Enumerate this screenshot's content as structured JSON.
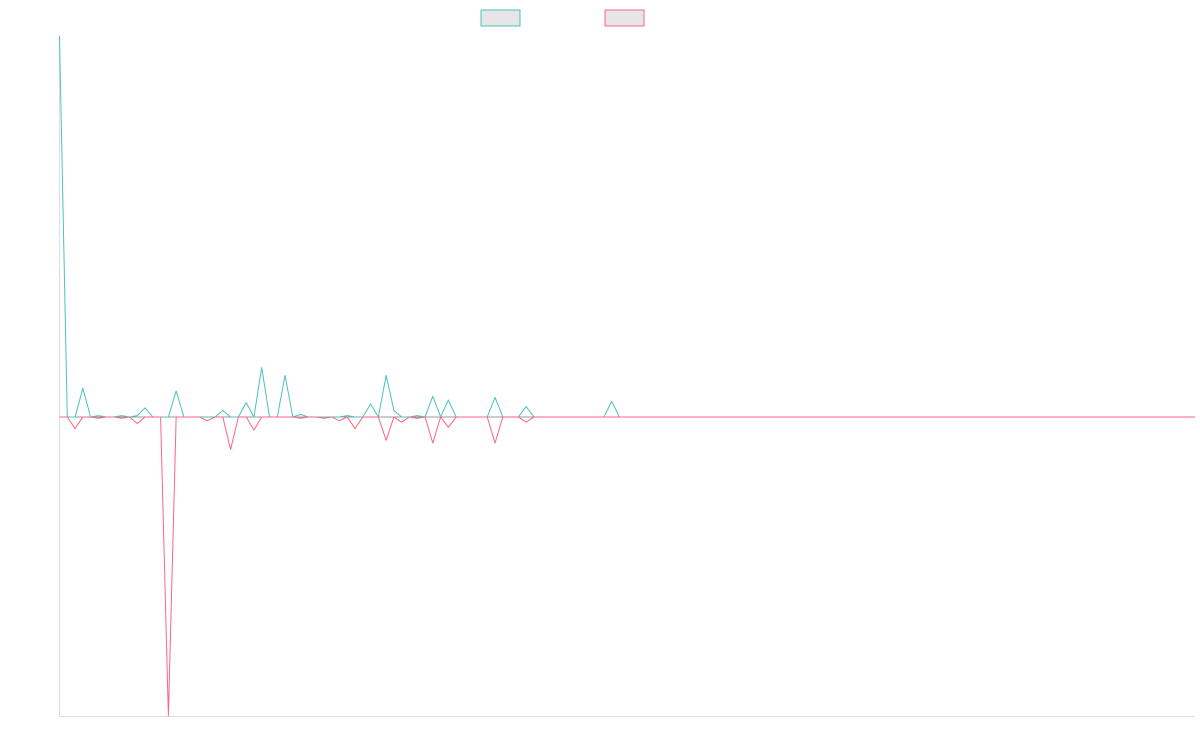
{
  "colors": {
    "background": "#ffffff",
    "series_a": "#4bc0c0",
    "series_b": "#ff6384",
    "legend_fill": "#e6e6e6",
    "axis": "#dddddd",
    "zero_line": "#999999"
  },
  "chart_data": {
    "type": "line",
    "title": "",
    "xlabel": "",
    "ylabel": "",
    "grid": false,
    "legend_position": "top-center",
    "xlim": [
      0,
      150
    ],
    "ylim": [
      -230,
      293
    ],
    "series": [
      {
        "name": "",
        "color": "#4bc0c0",
        "values": [
          293,
          0,
          0,
          22,
          0,
          1,
          0,
          0,
          1,
          0,
          1,
          7,
          0,
          0,
          0,
          20,
          0,
          0,
          0,
          0,
          0,
          5,
          0,
          0,
          11,
          0,
          38,
          0,
          0,
          32,
          0,
          2,
          0,
          0,
          0,
          0,
          0,
          1,
          0,
          0,
          10,
          0,
          32,
          5,
          0,
          0,
          1,
          0,
          16,
          0,
          13,
          0,
          0,
          0,
          0,
          0,
          15,
          0,
          0,
          0,
          8,
          0,
          0,
          0,
          0,
          0,
          0,
          0,
          0,
          0,
          0,
          12,
          0,
          0,
          0,
          0,
          0,
          0,
          0,
          0,
          0,
          0,
          0,
          0,
          0,
          0,
          0,
          0,
          0,
          0,
          0,
          0,
          0,
          0,
          0,
          0,
          0,
          0,
          0,
          0,
          0,
          0,
          0,
          0,
          0,
          0,
          0,
          0,
          0,
          0,
          0,
          0,
          0,
          0,
          0,
          0,
          0,
          0,
          0,
          0,
          0,
          0,
          0,
          0,
          0,
          0,
          0,
          0,
          0,
          0,
          0,
          0,
          0,
          0,
          0,
          0,
          0,
          0,
          0,
          0,
          0,
          0,
          0,
          0,
          0,
          0,
          0
        ]
      },
      {
        "name": "",
        "color": "#ff6384",
        "values": [
          0,
          0,
          -9,
          0,
          0,
          -1,
          0,
          0,
          -1,
          0,
          -5,
          0,
          0,
          0,
          -230,
          0,
          0,
          0,
          0,
          -3,
          0,
          0,
          -25,
          0,
          0,
          -10,
          0,
          0,
          0,
          0,
          0,
          -1,
          0,
          0,
          -1,
          0,
          -3,
          0,
          -9,
          0,
          0,
          0,
          -18,
          0,
          -4,
          0,
          -1,
          0,
          -20,
          0,
          -8,
          0,
          0,
          0,
          0,
          0,
          -20,
          0,
          0,
          0,
          -4,
          0,
          0,
          0,
          0,
          0,
          0,
          0,
          0,
          0,
          0,
          0,
          0,
          0,
          0,
          0,
          0,
          0,
          0,
          0,
          0,
          0,
          0,
          0,
          0,
          0,
          0,
          0,
          0,
          0,
          0,
          0,
          0,
          0,
          0,
          0,
          0,
          0,
          0,
          0,
          0,
          0,
          0,
          0,
          0,
          0,
          0,
          0,
          0,
          0,
          0,
          0,
          0,
          0,
          0,
          0,
          0,
          0,
          0,
          0,
          0,
          0,
          0,
          0,
          0,
          0,
          0,
          0,
          0,
          0,
          0,
          0,
          0,
          0,
          0,
          0,
          0,
          0,
          0,
          0,
          0,
          0,
          0,
          0,
          0,
          0,
          0
        ]
      }
    ]
  }
}
